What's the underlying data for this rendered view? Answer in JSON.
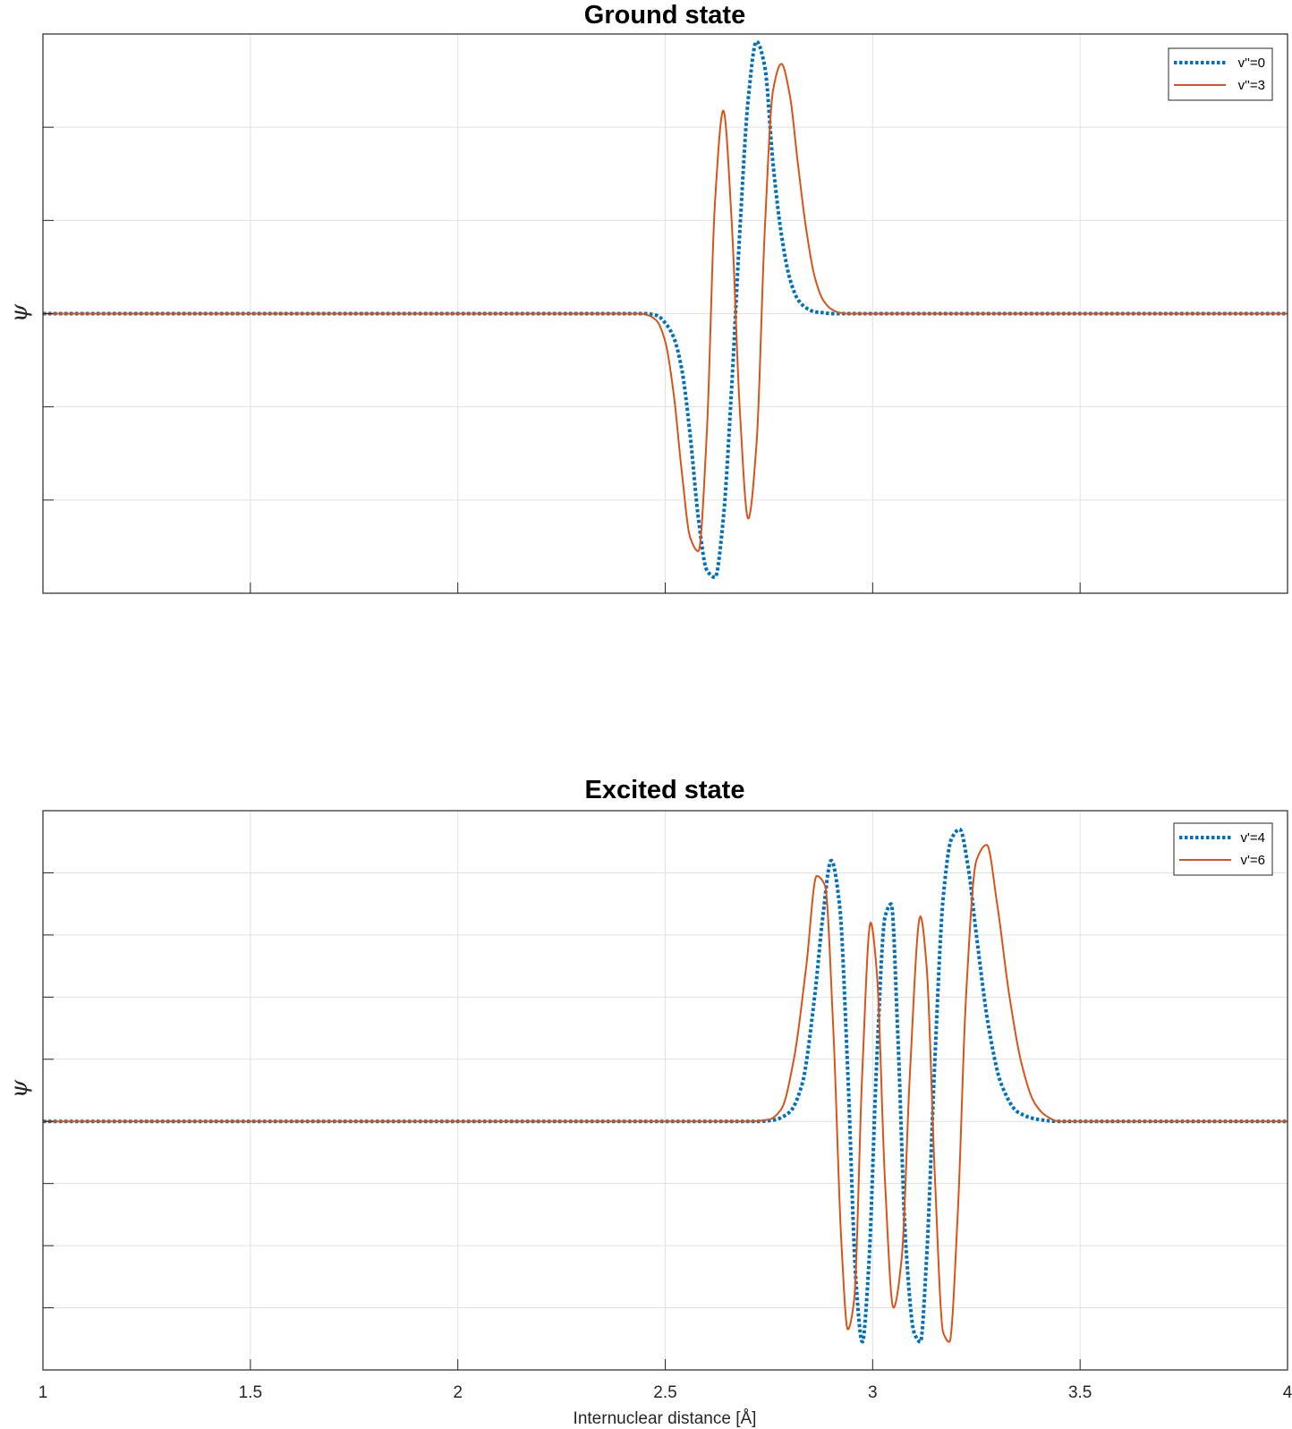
{
  "chart_data": [
    {
      "type": "line",
      "title": "Ground state",
      "xlabel": "",
      "ylabel": "ψ",
      "xlim": [
        1,
        4
      ],
      "xticks": [
        1,
        1.5,
        2,
        2.5,
        3,
        3.5,
        4
      ],
      "xtick_labels_visible": false,
      "ylim": [
        -3,
        3
      ],
      "yticks": [
        -2,
        -1,
        0,
        1,
        2
      ],
      "ytick_labels_visible": false,
      "grid": true,
      "legend_position": "top-right",
      "series": [
        {
          "name": "v''=0",
          "color": "#0072BD",
          "style": "dotted",
          "x": [
            1.0,
            2.45,
            2.48,
            2.5,
            2.52,
            2.54,
            2.56,
            2.58,
            2.6,
            2.62,
            2.64,
            2.66,
            2.68,
            2.7,
            2.72,
            2.74,
            2.76,
            2.78,
            2.8,
            2.82,
            2.84,
            2.86,
            2.88,
            2.9,
            2.92,
            4.0
          ],
          "y": [
            0,
            0,
            -0.02,
            -0.1,
            -0.25,
            -0.6,
            -1.3,
            -2.2,
            -2.75,
            -2.83,
            -2.2,
            -0.8,
            0.9,
            2.3,
            2.92,
            2.65,
            1.6,
            0.85,
            0.38,
            0.15,
            0.06,
            0.02,
            0.01,
            0.0,
            0.0,
            0
          ]
        },
        {
          "name": "v''=3",
          "color": "#D95319",
          "style": "solid",
          "x": [
            1.0,
            2.44,
            2.46,
            2.48,
            2.5,
            2.52,
            2.54,
            2.56,
            2.58,
            2.6,
            2.62,
            2.64,
            2.66,
            2.68,
            2.7,
            2.72,
            2.74,
            2.76,
            2.78,
            2.8,
            2.82,
            2.84,
            2.86,
            2.88,
            2.9,
            2.92,
            2.94,
            4.0
          ],
          "y": [
            0,
            0,
            -0.02,
            -0.08,
            -0.3,
            -0.85,
            -1.7,
            -2.4,
            -2.55,
            -1.3,
            1.2,
            2.18,
            1.0,
            -1.05,
            -2.2,
            -1.4,
            0.9,
            2.4,
            2.68,
            2.35,
            1.6,
            0.9,
            0.4,
            0.15,
            0.05,
            0.01,
            0.0,
            0
          ]
        }
      ]
    },
    {
      "type": "line",
      "title": "Excited state",
      "xlabel": "Internuclear distance [Å]",
      "ylabel": "ψ",
      "xlim": [
        1,
        4
      ],
      "xticks": [
        1,
        1.5,
        2,
        2.5,
        3,
        3.5,
        4
      ],
      "xtick_labels": [
        "1",
        "1.5",
        "2",
        "2.5",
        "3",
        "3.5",
        "4"
      ],
      "ylim": [
        -4,
        5
      ],
      "yticks": [
        -3,
        -2,
        -1,
        0,
        1,
        2,
        3,
        4
      ],
      "ytick_labels_visible": false,
      "grid": true,
      "legend_position": "top-right",
      "series": [
        {
          "name": "v'=4",
          "color": "#0072BD",
          "style": "dotted",
          "x": [
            1.0,
            2.72,
            2.76,
            2.8,
            2.83,
            2.86,
            2.88,
            2.9,
            2.92,
            2.94,
            2.96,
            2.975,
            2.99,
            3.01,
            3.03,
            3.045,
            3.06,
            3.08,
            3.1,
            3.115,
            3.13,
            3.15,
            3.17,
            3.19,
            3.21,
            3.23,
            3.25,
            3.28,
            3.31,
            3.35,
            3.4,
            3.45,
            4.0
          ],
          "y": [
            0,
            0,
            0.02,
            0.15,
            0.6,
            2.0,
            3.3,
            4.2,
            3.5,
            0.8,
            -2.6,
            -3.55,
            -2.4,
            1.0,
            3.3,
            3.5,
            1.5,
            -2.0,
            -3.4,
            -3.55,
            -2.2,
            1.0,
            3.6,
            4.55,
            4.7,
            4.1,
            3.0,
            1.5,
            0.6,
            0.15,
            0.03,
            0.0,
            0
          ]
        },
        {
          "name": "v'=6",
          "color": "#D95319",
          "style": "solid",
          "x": [
            1.0,
            2.7,
            2.75,
            2.78,
            2.81,
            2.84,
            2.865,
            2.885,
            2.905,
            2.925,
            2.94,
            2.955,
            2.975,
            2.995,
            3.01,
            3.03,
            3.05,
            3.07,
            3.09,
            3.115,
            3.13,
            3.15,
            3.17,
            3.185,
            3.205,
            3.225,
            3.25,
            3.275,
            3.3,
            3.33,
            3.36,
            3.39,
            3.42,
            3.45,
            4.0
          ],
          "y": [
            0,
            0,
            0.03,
            0.2,
            1.0,
            2.5,
            3.95,
            3.8,
            1.5,
            -2.0,
            -3.35,
            -2.9,
            0.8,
            3.2,
            2.4,
            -1.0,
            -3.0,
            -2.2,
            0.8,
            3.3,
            2.5,
            -0.9,
            -3.4,
            -3.55,
            -1.5,
            2.0,
            4.2,
            4.45,
            3.5,
            2.0,
            0.9,
            0.3,
            0.08,
            0.0,
            0
          ]
        }
      ]
    }
  ]
}
